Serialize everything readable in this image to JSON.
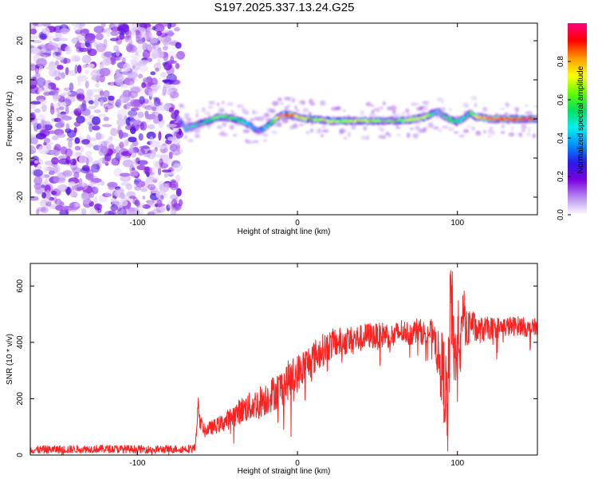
{
  "title": "S197.2025.337.13.24.G25",
  "chart_data": [
    {
      "type": "heatmap",
      "xlabel": "Height of straight line (km)",
      "ylabel": "Frequency (Hz)",
      "xlim": [
        -167,
        150
      ],
      "ylim": [
        -24.5,
        24.5
      ],
      "xticks": [
        -100,
        0,
        100
      ],
      "xtick_labels": [
        "-100",
        "0",
        "100"
      ],
      "yticks": [
        -20,
        -10,
        0,
        10,
        20
      ],
      "ytick_labels": [
        "-20",
        "-10",
        "0",
        "10",
        "20"
      ],
      "noise_region": [
        -167,
        -73
      ],
      "ridge": {
        "x": [
          -73,
          -70,
          -66,
          -60,
          -55,
          -50,
          -45,
          -40,
          -35,
          -30,
          -27,
          -24,
          -21,
          -18,
          -15,
          -12,
          -9,
          -6,
          -3,
          0,
          5,
          10,
          20,
          30,
          40,
          50,
          60,
          70,
          80,
          85,
          88,
          90,
          95,
          100,
          105,
          108,
          112,
          120,
          150
        ],
        "y": [
          -0.5,
          -2.5,
          -2.0,
          -1.0,
          -0.5,
          0.5,
          0.5,
          0.0,
          -0.5,
          -1.5,
          -2.5,
          -3.0,
          -2.5,
          -1.5,
          -0.5,
          0.5,
          1.0,
          1.0,
          1.0,
          0.5,
          0.0,
          0.0,
          -0.5,
          -0.5,
          -0.5,
          -0.5,
          -0.5,
          -0.3,
          0.5,
          1.5,
          2.0,
          1.0,
          0.0,
          -0.8,
          0.5,
          1.5,
          0.5,
          0.0,
          0.0
        ],
        "amplitude": [
          0.35,
          0.45,
          0.5,
          0.55,
          0.6,
          0.7,
          0.65,
          0.6,
          0.55,
          0.45,
          0.4,
          0.4,
          0.45,
          0.55,
          0.7,
          0.85,
          0.95,
          1.0,
          0.95,
          0.8,
          0.75,
          0.7,
          0.75,
          0.7,
          0.75,
          0.7,
          0.7,
          0.75,
          0.8,
          0.5,
          0.45,
          0.55,
          0.65,
          0.55,
          0.5,
          0.6,
          0.8,
          0.95,
          1.0
        ]
      },
      "colorbar": {
        "label": "Normalized spectral amplitude",
        "range": [
          0,
          1
        ],
        "ticks": [
          0.0,
          0.2,
          0.4,
          0.6,
          0.8
        ],
        "tick_labels": [
          "0.0",
          "0.2",
          "0.4",
          "0.6",
          "0.8"
        ],
        "colors": [
          "#ffffff",
          "#b98cf0",
          "#7a00e0",
          "#2a1ae8",
          "#0090ff",
          "#00f0f0",
          "#00e060",
          "#66ff00",
          "#ffff00",
          "#ff9900",
          "#ff0000",
          "#ff007f"
        ]
      }
    },
    {
      "type": "line",
      "xlabel": "Height of straight line (km)",
      "ylabel": "SNR (10 * v/v)",
      "xlim": [
        -167,
        150
      ],
      "ylim": [
        0,
        680
      ],
      "xticks": [
        -100,
        0,
        100
      ],
      "xtick_labels": [
        "-100",
        "0",
        "100"
      ],
      "yticks": [
        0,
        200,
        400,
        600
      ],
      "ytick_labels": [
        "0",
        "200",
        "400",
        "600"
      ],
      "series": [
        {
          "name": "SNR",
          "color": "#ff2020",
          "x": [
            -167,
            -150,
            -120,
            -90,
            -70,
            -64,
            -63,
            -62,
            -61,
            -58,
            -55,
            -50,
            -45,
            -40,
            -35,
            -30,
            -25,
            -20,
            -15,
            -10,
            -5,
            0,
            5,
            10,
            15,
            20,
            25,
            30,
            35,
            40,
            45,
            50,
            55,
            60,
            65,
            70,
            75,
            80,
            85,
            88,
            90,
            92,
            94,
            96,
            98,
            100,
            102,
            104,
            106,
            108,
            112,
            120,
            130,
            140,
            145,
            150
          ],
          "y": [
            18,
            20,
            22,
            20,
            22,
            24,
            110,
            175,
            120,
            85,
            95,
            105,
            120,
            140,
            160,
            170,
            185,
            200,
            220,
            240,
            270,
            290,
            320,
            345,
            370,
            390,
            400,
            405,
            410,
            415,
            425,
            420,
            430,
            420,
            440,
            430,
            445,
            430,
            440,
            350,
            320,
            250,
            150,
            600,
            300,
            470,
            380,
            520,
            420,
            480,
            440,
            450,
            455,
            460,
            445,
            460
          ],
          "jitter": [
            14,
            14,
            14,
            14,
            14,
            16,
            28,
            30,
            24,
            22,
            24,
            28,
            34,
            40,
            46,
            52,
            56,
            60,
            64,
            68,
            70,
            68,
            64,
            62,
            58,
            56,
            52,
            50,
            50,
            48,
            48,
            46,
            46,
            46,
            44,
            44,
            44,
            44,
            46,
            90,
            130,
            160,
            180,
            190,
            160,
            110,
            100,
            90,
            80,
            60,
            48,
            40,
            36,
            34,
            32,
            30
          ]
        }
      ]
    }
  ]
}
